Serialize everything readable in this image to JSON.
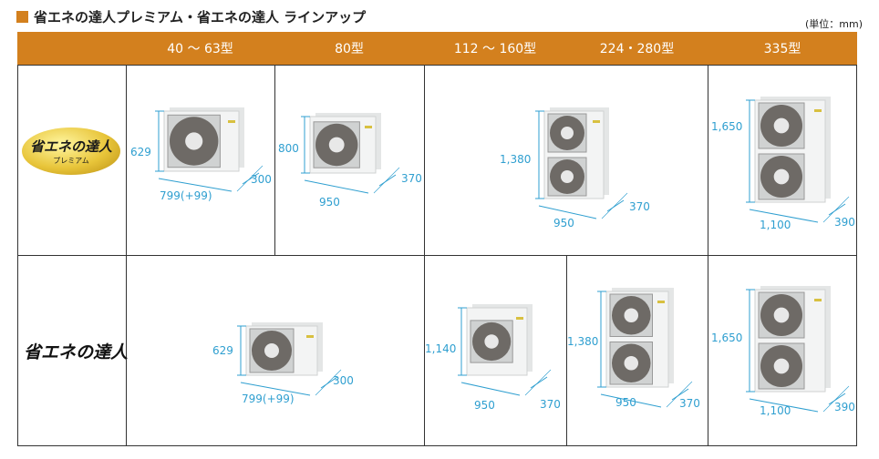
{
  "title": "省エネの達人プレミアム・省エネの達人 ラインアップ",
  "unit_note": "(単位：mm)",
  "accent_color": "#d3801e",
  "dimension_color": "#2f9fd0",
  "headers": [
    "",
    "40 ～ 63型",
    "80型",
    "112 ～ 160型",
    "224・280型",
    "335型"
  ],
  "rows": [
    {
      "logo": {
        "main": "省エネの達人",
        "sub": "プレミアム"
      },
      "units": [
        {
          "model": "40 ～ 63型",
          "fans": 1,
          "height": "629",
          "width": "799(+99)",
          "depth": "300"
        },
        {
          "model": "80型",
          "fans": 1,
          "height": "800",
          "width": "950",
          "depth": "370"
        },
        {
          "model": "112 ～ 280型",
          "fans": 2,
          "height": "1,380",
          "width": "950",
          "depth": "370"
        },
        {
          "model": "335型",
          "fans": 2,
          "height": "1,650",
          "width": "1,100",
          "depth": "390"
        }
      ]
    },
    {
      "logo": {
        "main": "省エネの達人"
      },
      "units": [
        {
          "model": "40 ～ 80型",
          "fans": 1,
          "height": "629",
          "width": "799(+99)",
          "depth": "300"
        },
        {
          "model": "112 ～ 160型",
          "fans": 1,
          "height": "1,140",
          "width": "950",
          "depth": "370"
        },
        {
          "model": "224・280型",
          "fans": 2,
          "height": "1,380",
          "width": "950",
          "depth": "370"
        },
        {
          "model": "335型",
          "fans": 2,
          "height": "1,650",
          "width": "1,100",
          "depth": "390"
        }
      ]
    }
  ]
}
